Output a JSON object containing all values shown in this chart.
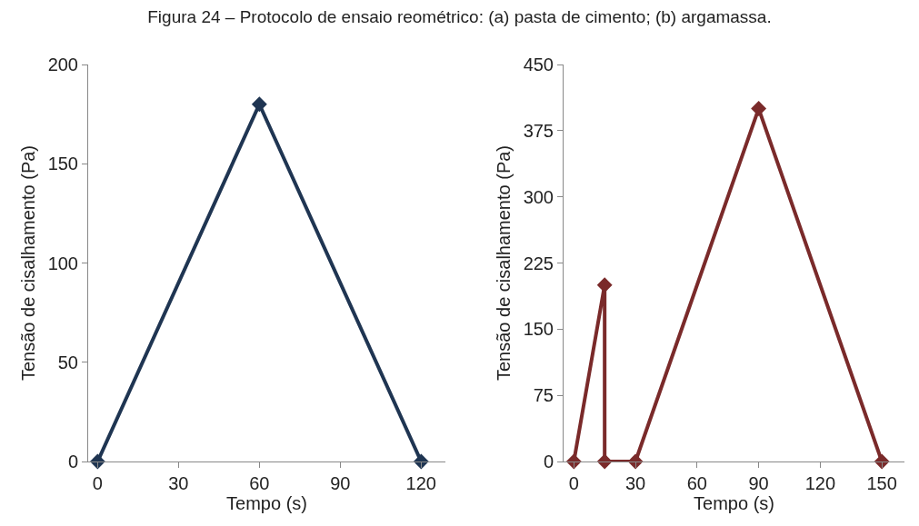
{
  "chart_data": [
    {
      "type": "line",
      "annotations": [
        "Figura 24 – Protocolo de ensaio reométrico: (a) pasta de cimento; (b) argamassa."
      ],
      "xlabel": "Tempo (s)",
      "ylabel": "Tensão de cisalhamento (Pa)",
      "x": [
        0,
        60,
        120
      ],
      "series": [
        {
          "color": "#1f3552",
          "values": [
            0,
            180,
            0
          ]
        }
      ],
      "xlim": [
        -3.5,
        129
      ],
      "xticks": [
        0,
        30,
        60,
        90,
        120
      ],
      "ylim": [
        0,
        200
      ],
      "yticks": [
        0,
        50,
        100,
        150,
        200
      ],
      "grid": false,
      "marker": "diamond",
      "line_style": "solid"
    },
    {
      "type": "line",
      "xlabel": "Tempo (s)",
      "ylabel": "Tensão de cisalhamento (Pa)",
      "x": [
        0,
        15,
        15,
        30,
        90,
        150
      ],
      "series": [
        {
          "color": "#7a2a2a",
          "values": [
            0,
            200,
            0,
            0,
            400,
            0
          ]
        }
      ],
      "xlim": [
        -5,
        161
      ],
      "xticks": [
        0,
        30,
        60,
        90,
        120,
        150
      ],
      "ylim": [
        0,
        450
      ],
      "yticks": [
        0,
        75,
        150,
        225,
        300,
        375,
        450
      ],
      "grid": false,
      "marker": "diamond",
      "line_style": "solid"
    }
  ]
}
